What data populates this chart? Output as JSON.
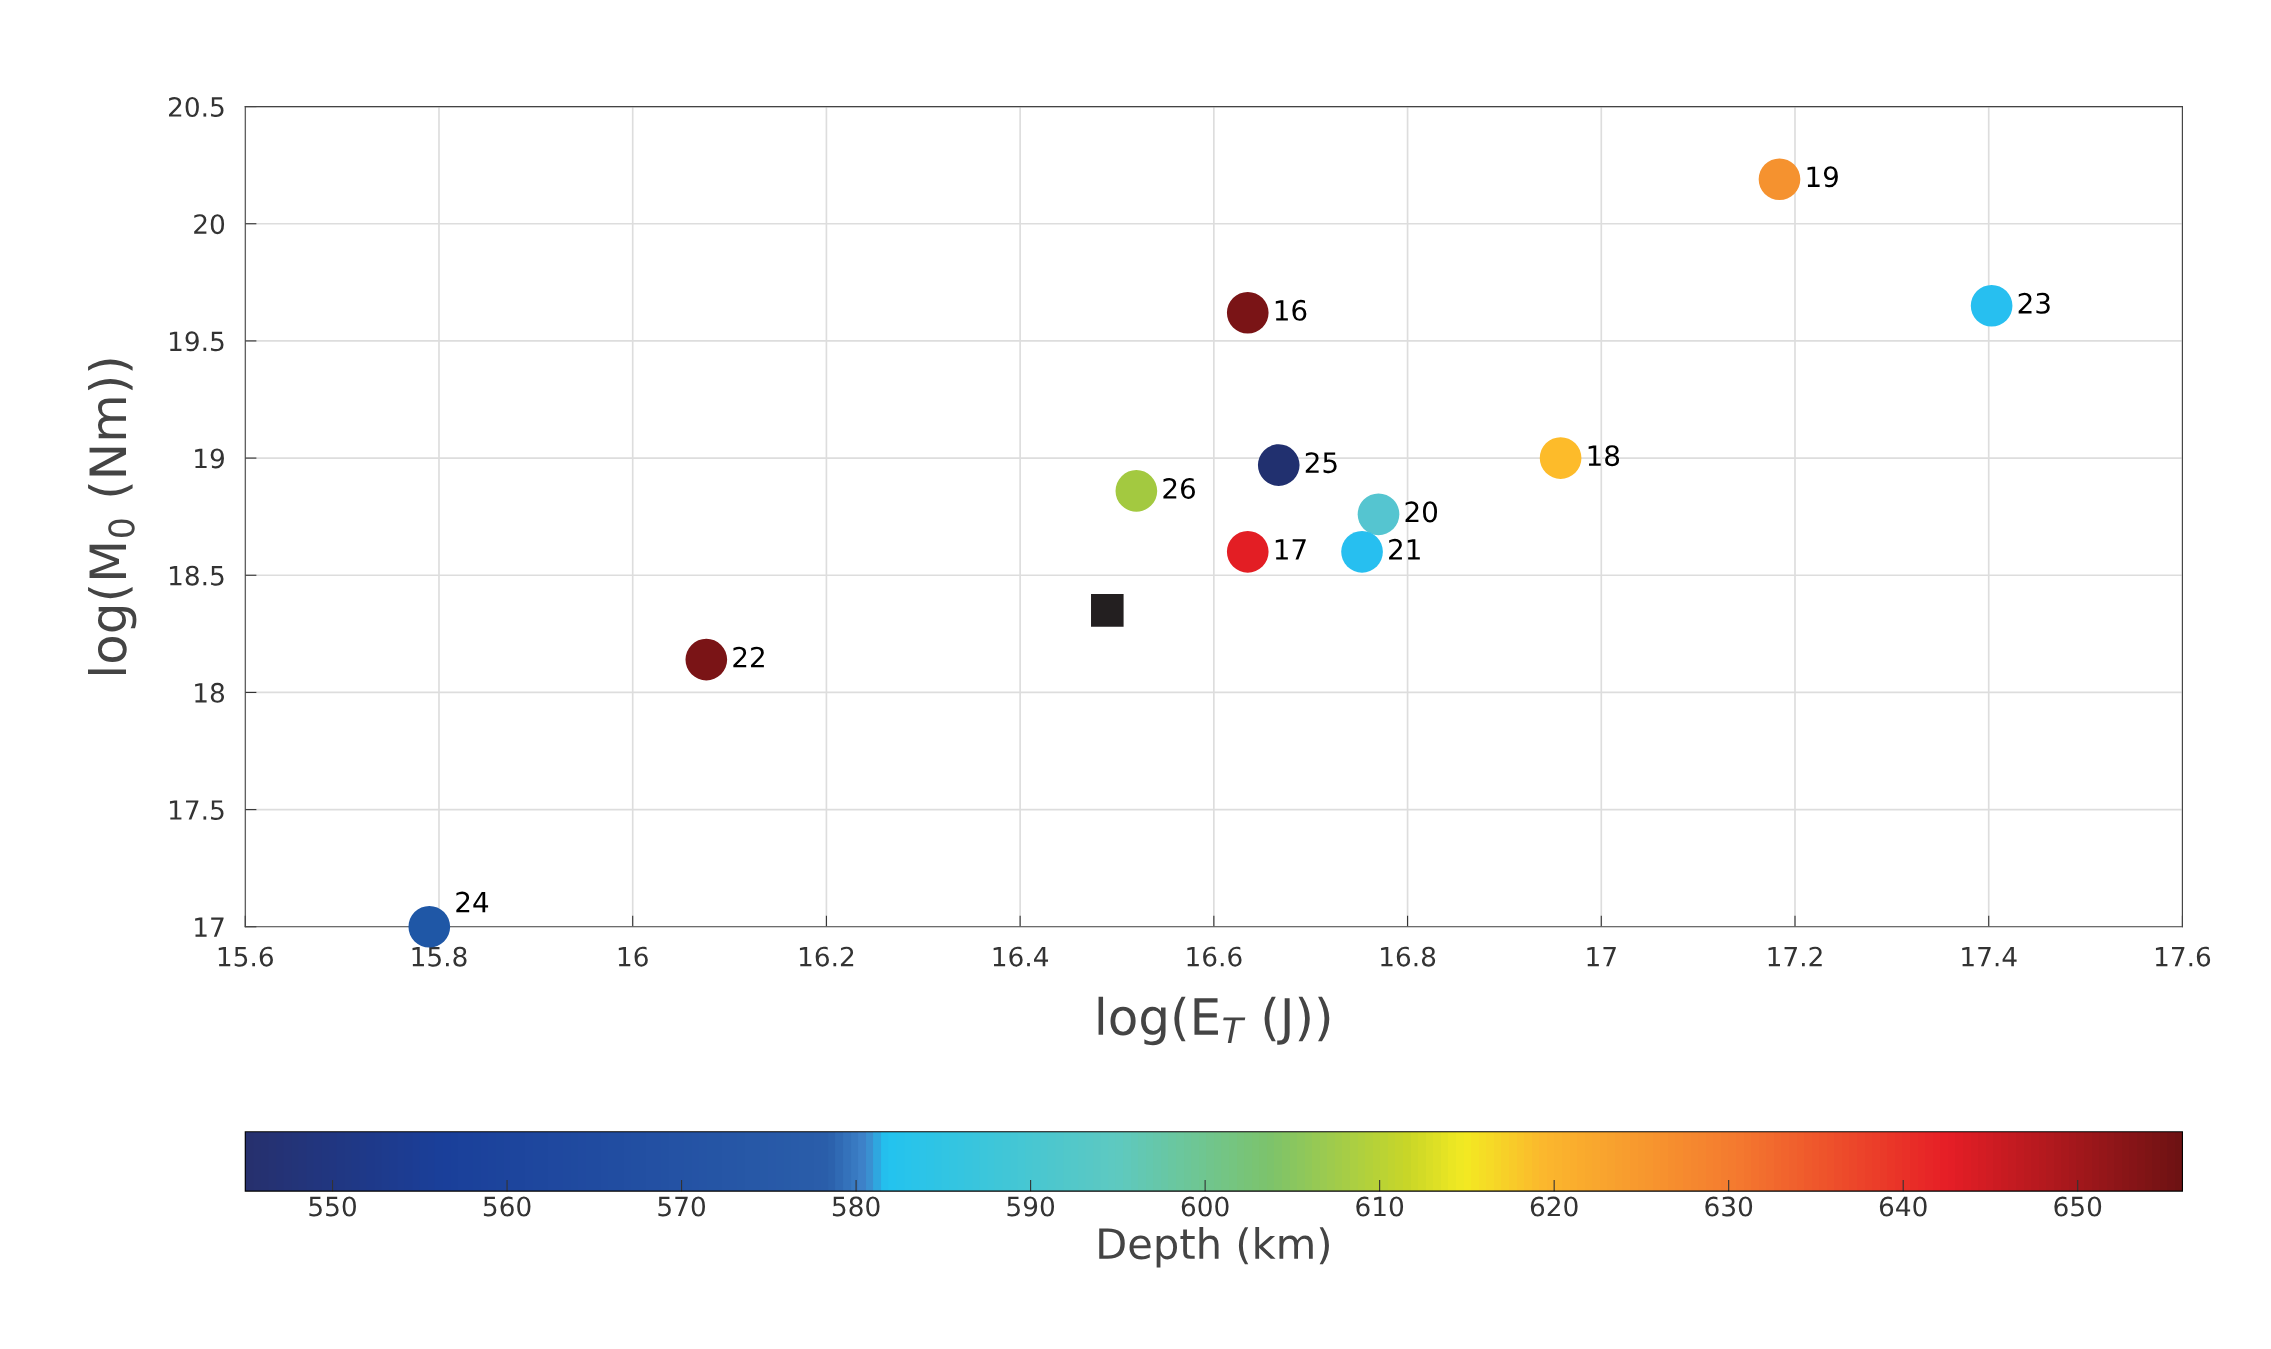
{
  "chart_data": {
    "type": "scatter",
    "xlabel": "log(E$_{T}$ (J))",
    "ylabel": "log(M$_{0}$ (Nm))",
    "clabel": "Depth (km)",
    "xlim": [
      15.6,
      17.6
    ],
    "xticks": [
      15.6,
      15.8,
      16,
      16.2,
      16.4,
      16.6,
      16.8,
      17,
      17.2,
      17.4,
      17.6
    ],
    "ylim": [
      17,
      20.5
    ],
    "yticks": [
      17,
      17.5,
      18,
      18.5,
      19,
      19.5,
      20,
      20.5
    ],
    "clim": [
      545,
      656
    ],
    "cticks": [
      550,
      560,
      570,
      580,
      590,
      600,
      610,
      620,
      630,
      640,
      650
    ],
    "grid": true,
    "series": [
      {
        "marker": "circle",
        "x": [
          15.79,
          16.076,
          16.52,
          16.635,
          16.635,
          16.667,
          16.77,
          16.753,
          16.958,
          17.184,
          17.403
        ],
        "values": [
          17.0,
          18.14,
          18.86,
          18.6,
          19.62,
          18.97,
          18.76,
          18.6,
          19.0,
          20.19,
          19.65
        ],
        "colors": [
          "#1f57a6",
          "#7a1416",
          "#a3c940",
          "#e31e24",
          "#7a1416",
          "#21306f",
          "#55c5d0",
          "#27bff0",
          "#fdbb2a",
          "#f5922f",
          "#27bff0"
        ]
      },
      {
        "marker": "square",
        "color": "#231f20",
        "x": [
          16.49
        ],
        "values": [
          18.35
        ]
      }
    ],
    "annotations": [
      {
        "text": "24",
        "x": 15.79,
        "y": 17.0
      },
      {
        "text": "22",
        "x": 16.076,
        "y": 18.14
      },
      {
        "text": "26",
        "x": 16.52,
        "y": 18.86
      },
      {
        "text": "17",
        "x": 16.635,
        "y": 18.6
      },
      {
        "text": "16",
        "x": 16.635,
        "y": 19.62
      },
      {
        "text": "25",
        "x": 16.667,
        "y": 18.97
      },
      {
        "text": "20",
        "x": 16.77,
        "y": 18.76
      },
      {
        "text": "21",
        "x": 16.753,
        "y": 18.6
      },
      {
        "text": "18",
        "x": 16.958,
        "y": 19.0
      },
      {
        "text": "19",
        "x": 17.184,
        "y": 20.19
      },
      {
        "text": "23",
        "x": 17.403,
        "y": 19.65
      }
    ]
  }
}
